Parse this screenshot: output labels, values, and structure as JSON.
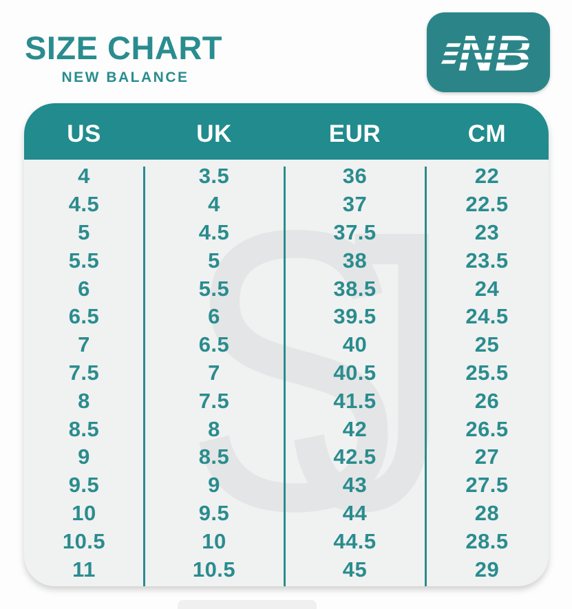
{
  "title": {
    "main": "SIZE CHART",
    "sub": "NEW BALANCE"
  },
  "logo": {
    "brand": "New Balance",
    "monogram": "NB"
  },
  "watermark": {
    "letter_s": "S",
    "letter_j": "J"
  },
  "colors": {
    "header_teal": "#218b8d",
    "text_teal": "#2a8c8e",
    "logo_bg": "#2b8588",
    "body_bg": "#f0f1f1",
    "watermark_gray": "#e4e5e6",
    "header_text": "#ffffff",
    "page_bg": "#fdfdfd"
  },
  "chart_data": {
    "type": "table",
    "title": "SIZE CHART",
    "subtitle": "NEW BALANCE",
    "columns": [
      "US",
      "UK",
      "EUR",
      "CM"
    ],
    "rows": [
      [
        "4",
        "3.5",
        "36",
        "22"
      ],
      [
        "4.5",
        "4",
        "37",
        "22.5"
      ],
      [
        "5",
        "4.5",
        "37.5",
        "23"
      ],
      [
        "5.5",
        "5",
        "38",
        "23.5"
      ],
      [
        "6",
        "5.5",
        "38.5",
        "24"
      ],
      [
        "6.5",
        "6",
        "39.5",
        "24.5"
      ],
      [
        "7",
        "6.5",
        "40",
        "25"
      ],
      [
        "7.5",
        "7",
        "40.5",
        "25.5"
      ],
      [
        "8",
        "7.5",
        "41.5",
        "26"
      ],
      [
        "8.5",
        "8",
        "42",
        "26.5"
      ],
      [
        "9",
        "8.5",
        "42.5",
        "27"
      ],
      [
        "9.5",
        "9",
        "43",
        "27.5"
      ],
      [
        "10",
        "9.5",
        "44",
        "28"
      ],
      [
        "10.5",
        "10",
        "44.5",
        "28.5"
      ],
      [
        "11",
        "10.5",
        "45",
        "29"
      ]
    ]
  }
}
